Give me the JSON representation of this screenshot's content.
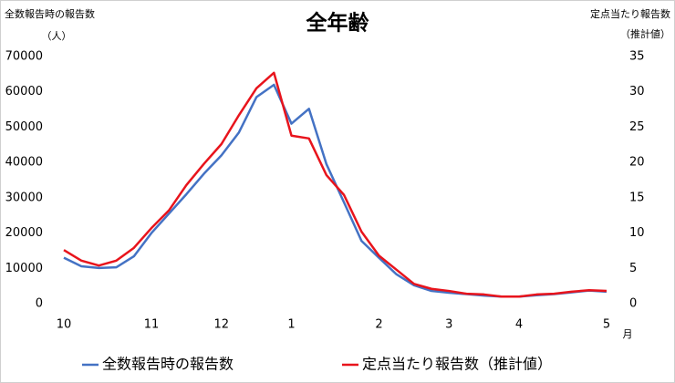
{
  "chart_data": {
    "type": "line",
    "title": "全年齢",
    "y_label": "全数報告時の報告数",
    "y_unit": "（人）",
    "y2_label": "定点当たり報告数",
    "y2_unit": "（推計値）",
    "x_unit": "月",
    "categories": [
      "10",
      null,
      null,
      null,
      null,
      "11",
      null,
      null,
      null,
      "12",
      null,
      null,
      null,
      "1",
      null,
      null,
      null,
      null,
      "2",
      null,
      null,
      null,
      "3",
      null,
      null,
      null,
      "4",
      null,
      null,
      null,
      null,
      "5"
    ],
    "ylim": [
      0,
      70000
    ],
    "yticks": [
      0,
      10000,
      20000,
      30000,
      40000,
      50000,
      60000,
      70000
    ],
    "y2lim": [
      0,
      35
    ],
    "y2ticks": [
      0,
      5,
      10,
      15,
      20,
      25,
      30,
      35
    ],
    "series": [
      {
        "name": "全数報告時の報告数",
        "color": "#4472c4",
        "values": [
          13000,
          10600,
          10100,
          10300,
          13400,
          20000,
          25500,
          31000,
          36800,
          42000,
          48500,
          58500,
          62000,
          51000,
          55200,
          39500,
          28700,
          17800,
          13000,
          8300,
          5200,
          3600,
          3100,
          2700,
          2300,
          2000,
          2000,
          2400,
          2700,
          3200,
          3700,
          3400
        ]
      },
      {
        "name": "定点当たり報告数（推計値）",
        "color": "#e8141c",
        "axis": "y2",
        "values": [
          7.6,
          6.1,
          5.4,
          6.1,
          7.9,
          10.7,
          13.2,
          16.8,
          19.8,
          22.6,
          26.7,
          30.5,
          32.7,
          23.8,
          23.4,
          18.2,
          15.4,
          10.2,
          6.8,
          4.8,
          2.8,
          2.1,
          1.8,
          1.4,
          1.3,
          1.0,
          1.0,
          1.3,
          1.4,
          1.7,
          1.9,
          1.8
        ]
      }
    ]
  }
}
